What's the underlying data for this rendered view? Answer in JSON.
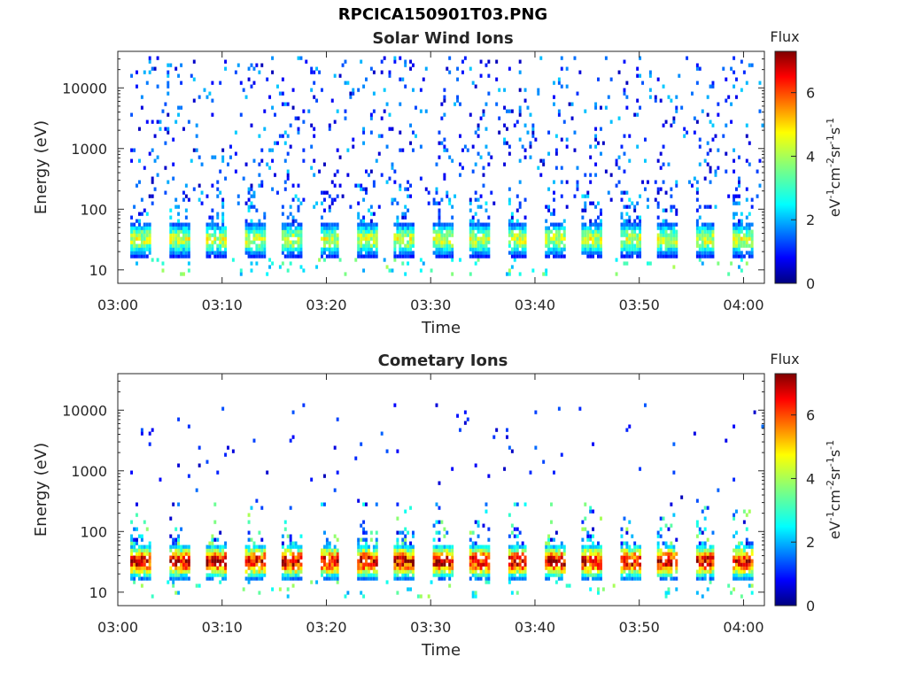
{
  "figure_title": "RPCICA150901T03.PNG",
  "colorbar": {
    "title": "Flux",
    "label_html": "eV-1cm-2sr-1s-1",
    "ticks": [
      "0",
      "2",
      "4",
      "6"
    ],
    "range": [
      0,
      7.3
    ]
  },
  "chart_data": [
    {
      "type": "heatmap",
      "title": "Solar Wind Ions",
      "xlabel": "Time",
      "ylabel": "Energy (eV)",
      "x_range": [
        "03:00",
        "04:02"
      ],
      "y_scale": "log",
      "y_range": [
        6,
        40000
      ],
      "x_ticks": [
        "03:00",
        "03:10",
        "03:20",
        "03:30",
        "03:40",
        "03:50",
        "04:00"
      ],
      "y_ticks": [
        "10",
        "100",
        "1000",
        "10000"
      ],
      "colormap": "jet",
      "z_label": "Flux",
      "z_range": [
        0,
        7.3
      ],
      "sweep_period_min": 3.6,
      "peak_energy_eV": 30,
      "peak_flux": 4.5,
      "background": "sparse speckle 100-30000 eV, flux 0.5-3"
    },
    {
      "type": "heatmap",
      "title": "Cometary Ions",
      "xlabel": "Time",
      "ylabel": "Energy (eV)",
      "x_range": [
        "03:00",
        "04:02"
      ],
      "y_scale": "log",
      "y_range": [
        6,
        40000
      ],
      "x_ticks": [
        "03:00",
        "03:10",
        "03:20",
        "03:30",
        "03:40",
        "03:50",
        "04:00"
      ],
      "y_ticks": [
        "10",
        "100",
        "1000",
        "10000"
      ],
      "colormap": "jet",
      "z_label": "Flux",
      "z_range": [
        0,
        7.3
      ],
      "sweep_period_min": 3.6,
      "peak_energy_eV": 30,
      "peak_flux": 7.0,
      "background": "sparse speckle 300-10000 eV, flux 0.5-2"
    }
  ]
}
